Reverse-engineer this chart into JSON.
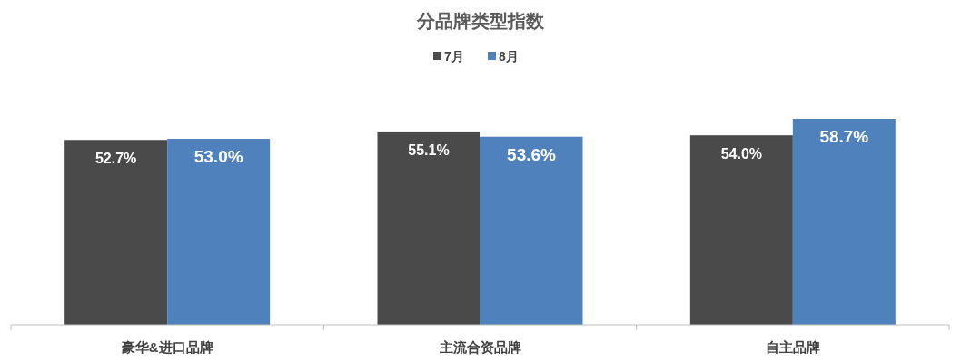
{
  "chart_data": {
    "type": "bar",
    "title": "分品牌类型指数",
    "categories": [
      "豪华&进口品牌",
      "主流合资品牌",
      "自主品牌"
    ],
    "series": [
      {
        "name": "7月",
        "color": "#4a4a4a",
        "values": [
          52.7,
          55.1,
          54.0
        ],
        "value_labels": [
          "52.7%",
          "55.1%",
          "54.0%"
        ]
      },
      {
        "name": "8月",
        "color": "#4f81bd",
        "values": [
          53.0,
          53.6,
          58.7
        ],
        "value_labels": [
          "53.0%",
          "53.6%",
          "58.7%"
        ]
      }
    ],
    "tick_labels": "x",
    "legend": "top"
  }
}
